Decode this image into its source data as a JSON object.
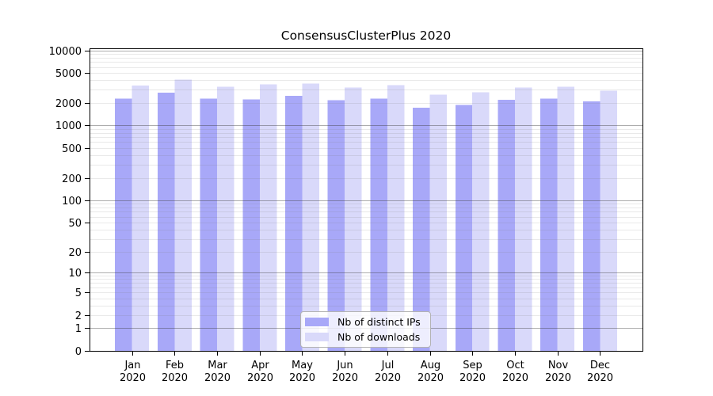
{
  "figure": {
    "background": "#ffffff"
  },
  "chart_data": {
    "type": "bar",
    "title": "ConsensusClusterPlus 2020",
    "scale": "log1p",
    "categories": [
      "Jan",
      "Feb",
      "Mar",
      "Apr",
      "May",
      "Jun",
      "Jul",
      "Aug",
      "Sep",
      "Oct",
      "Nov",
      "Dec"
    ],
    "year": "2020",
    "series": [
      {
        "name": "Nb of distinct IPs",
        "color": "#a8a8f8",
        "values": [
          2290,
          2730,
          2280,
          2230,
          2480,
          2180,
          2270,
          1725,
          1870,
          2200,
          2270,
          2090
        ]
      },
      {
        "name": "Nb of downloads",
        "color": "#d9d9fa",
        "values": [
          3400,
          4090,
          3290,
          3540,
          3630,
          3220,
          3430,
          2580,
          2770,
          3220,
          3270,
          2910
        ]
      }
    ],
    "y_ticks": [
      0,
      1,
      2,
      5,
      10,
      20,
      50,
      100,
      200,
      500,
      1000,
      2000,
      5000,
      10000
    ],
    "ylim": [
      0,
      10650
    ],
    "grid": true,
    "legend_position": "lower center",
    "style": {
      "axis_color": "#000000",
      "grid_major_color": "#ababab",
      "grid_minor_color": "#eaeaea",
      "text_color": "#000000"
    }
  }
}
